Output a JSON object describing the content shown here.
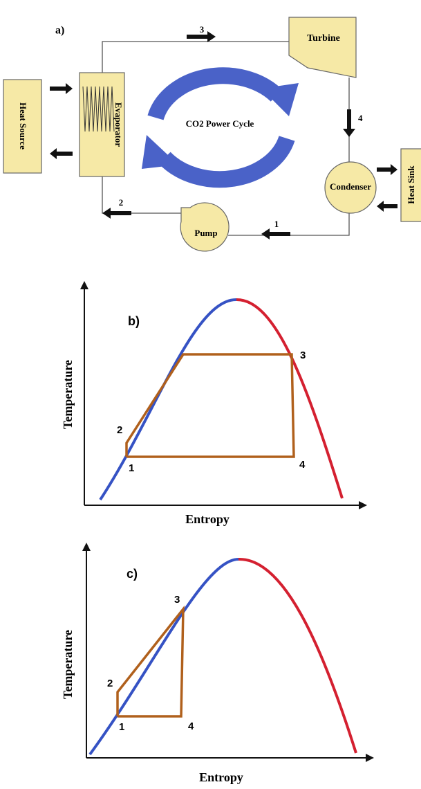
{
  "panel_a": {
    "label": "a)",
    "title": "CO2 Power Cycle",
    "components": {
      "turbine": "Turbine",
      "evaporator": "Evaporator",
      "condenser": "Condenser",
      "pump": "Pump",
      "heat_source": "Heat Source",
      "heat_sink": "Heat Sink"
    },
    "states": [
      "1",
      "2",
      "3",
      "4"
    ]
  },
  "panel_b": {
    "label": "b)",
    "y_axis_label": "Temperature",
    "x_axis_label": "Entropy",
    "points": [
      "1",
      "2",
      "3",
      "4"
    ]
  },
  "panel_c": {
    "label": "c)",
    "y_axis_label": "Temperature",
    "x_axis_label": "Entropy",
    "points": [
      "1",
      "2",
      "3",
      "4"
    ]
  }
}
